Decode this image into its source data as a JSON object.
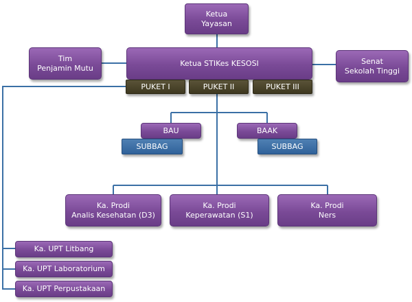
{
  "chart": {
    "yayasan": "Ketua\nYayasan",
    "ketua": "Ketua  STIKes KESOSI",
    "tim": "Tim\nPenjamin Mutu",
    "senat": "Senat\nSekolah Tinggi",
    "puket": [
      "PUKET I",
      "PUKET II",
      "PUKET III"
    ],
    "bau": "BAU",
    "baak": "BAAK",
    "subbag_left": "SUBBAG",
    "subbag_right": "SUBBAG",
    "prodi": [
      "Ka. Prodi\nAnalis Kesehatan (D3)",
      "Ka. Prodi\nKeperawatan (S1)",
      "Ka. Prodi\nNers"
    ],
    "upt": [
      "Ka. UPT Litbang",
      "Ka. UPT Laboratorium",
      "Ka. UPT Perpustakaan"
    ]
  },
  "colors": {
    "unit_box": "#7a4a97",
    "puket_box": "#3e3820",
    "subbag_box": "#30629a",
    "connector": "#3a6fa5"
  }
}
